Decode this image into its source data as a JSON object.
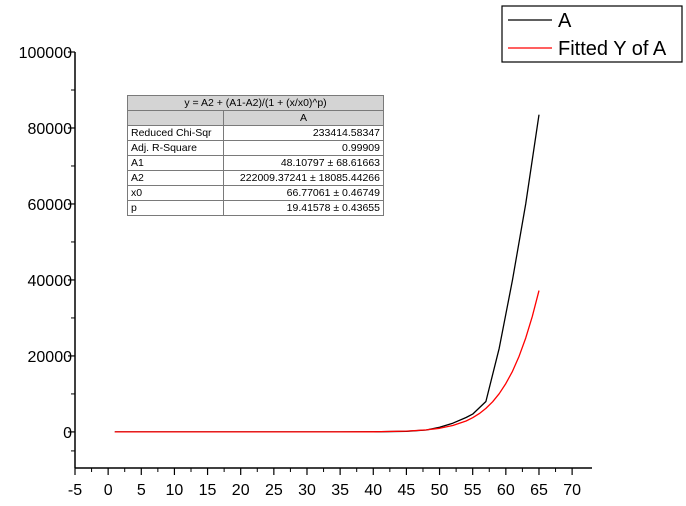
{
  "chart_data": {
    "type": "line",
    "title": "",
    "xlabel": "",
    "ylabel": "",
    "xlim": [
      -5,
      73
    ],
    "ylim": [
      -9500,
      100000
    ],
    "x_ticks": [
      -5,
      0,
      5,
      10,
      15,
      20,
      25,
      30,
      35,
      40,
      45,
      50,
      55,
      60,
      65,
      70
    ],
    "y_ticks": [
      0,
      20000,
      40000,
      60000,
      80000,
      100000
    ],
    "grid": false,
    "legend_position": "top-right",
    "series": [
      {
        "name": "A",
        "color": "#000000",
        "x": [
          1,
          5,
          10,
          15,
          20,
          25,
          30,
          35,
          40,
          45,
          48,
          50,
          52,
          54,
          55,
          57,
          59,
          61,
          63,
          65
        ],
        "y": [
          0,
          0,
          0,
          0,
          0,
          0,
          0,
          0,
          20,
          150,
          500,
          1200,
          2300,
          3800,
          4700,
          8000,
          22000,
          40000,
          60000,
          83500
        ]
      },
      {
        "name": "Fitted Y of A",
        "color": "#ff0000",
        "x": [
          1,
          5,
          10,
          15,
          20,
          25,
          30,
          35,
          40,
          45,
          48,
          50,
          52,
          54,
          55,
          56,
          57,
          58,
          59,
          60,
          61,
          62,
          63,
          64,
          65
        ],
        "y": [
          0,
          0,
          0,
          0,
          0,
          0,
          0,
          0,
          30,
          210,
          540,
          960,
          1690,
          2880,
          3740,
          4830,
          6200,
          7930,
          10070,
          12720,
          15960,
          19920,
          24690,
          30400,
          37200
        ]
      }
    ]
  },
  "fit_table": {
    "equation": "y = A2 + (A1-A2)/(1 + (x/x0)^p)",
    "column": "A",
    "rows": [
      {
        "label": "Reduced Chi-Sqr",
        "value": "233414.58347"
      },
      {
        "label": "Adj. R-Square",
        "value": "0.99909"
      },
      {
        "label": "A1",
        "value": "48.10797 ± 68.61663"
      },
      {
        "label": "A2",
        "value": "222009.37241 ± 18085.44266"
      },
      {
        "label": "x0",
        "value": "66.77061 ± 0.46749"
      },
      {
        "label": "p",
        "value": "19.41578 ± 0.43655"
      }
    ]
  }
}
